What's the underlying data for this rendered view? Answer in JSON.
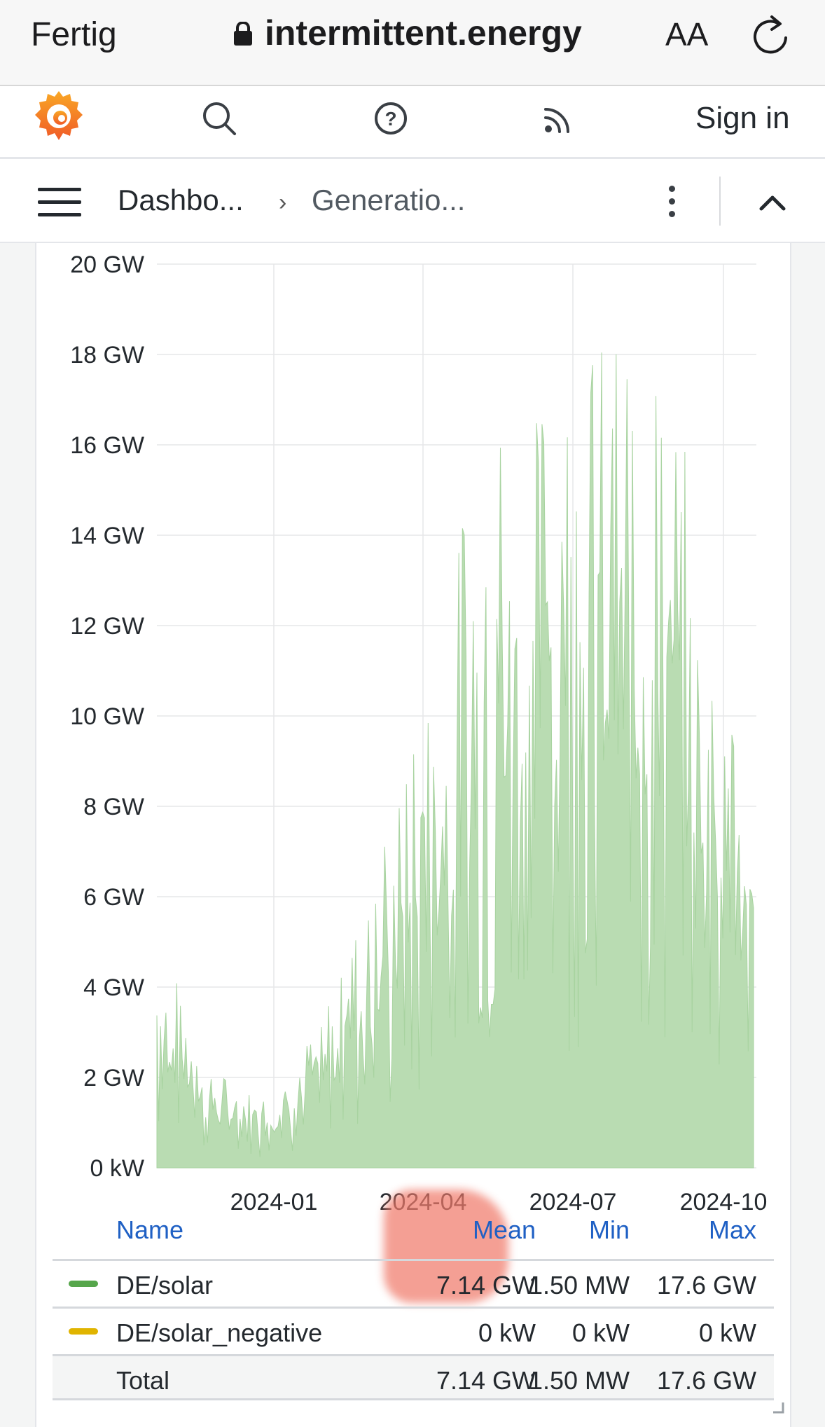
{
  "safari": {
    "done_label": "Fertig",
    "url": "intermittent.energy",
    "text_size_label": "AA"
  },
  "nav": {
    "sign_in": "Sign in",
    "icons": [
      "grafana-logo-icon",
      "search-icon",
      "help-icon",
      "rss-icon"
    ]
  },
  "breadcrumb": {
    "item1": "Dashbo...",
    "separator": "›",
    "item2": "Generatio..."
  },
  "chart_data": {
    "type": "area",
    "x_ticks": [
      "2024-01",
      "2024-04",
      "2024-07",
      "2024-10"
    ],
    "y_ticks": [
      "0 kW",
      "2 GW",
      "4 GW",
      "6 GW",
      "8 GW",
      "10 GW",
      "12 GW",
      "14 GW",
      "16 GW",
      "18 GW",
      "20 GW"
    ],
    "ylim": [
      0,
      20
    ],
    "y_unit": "GW",
    "grid": true,
    "x": [
      "2023-11",
      "2023-12",
      "2024-01",
      "2024-02",
      "2024-03",
      "2024-04",
      "2024-05",
      "2024-06",
      "2024-07",
      "2024-08",
      "2024-09",
      "2024-10"
    ],
    "series": [
      {
        "name": "DE/solar",
        "color": "#73bf69",
        "values_envelope": [
          5.0,
          2.0,
          1.5,
          3.0,
          6.0,
          10.0,
          15.5,
          16.0,
          17.5,
          16.8,
          14.5,
          7.0
        ]
      },
      {
        "name": "DE/solar_negative",
        "color": "#e0b400",
        "values_envelope": [
          0,
          0,
          0,
          0,
          0,
          0,
          0,
          0,
          0,
          0,
          0,
          0
        ]
      }
    ]
  },
  "legend": {
    "headers": {
      "name": "Name",
      "mean": "Mean",
      "min": "Min",
      "max": "Max"
    },
    "rows": [
      {
        "name": "DE/solar",
        "mean": "7.14 GW",
        "min": "1.50 MW",
        "max": "17.6 GW",
        "color": "#56a64b"
      },
      {
        "name": "DE/solar_negative",
        "mean": "0 kW",
        "min": "0 kW",
        "max": "0 kW",
        "color": "#e0b400"
      }
    ],
    "total": {
      "name": "Total",
      "mean": "7.14 GW",
      "min": "1.50 MW",
      "max": "17.6 GW"
    }
  }
}
